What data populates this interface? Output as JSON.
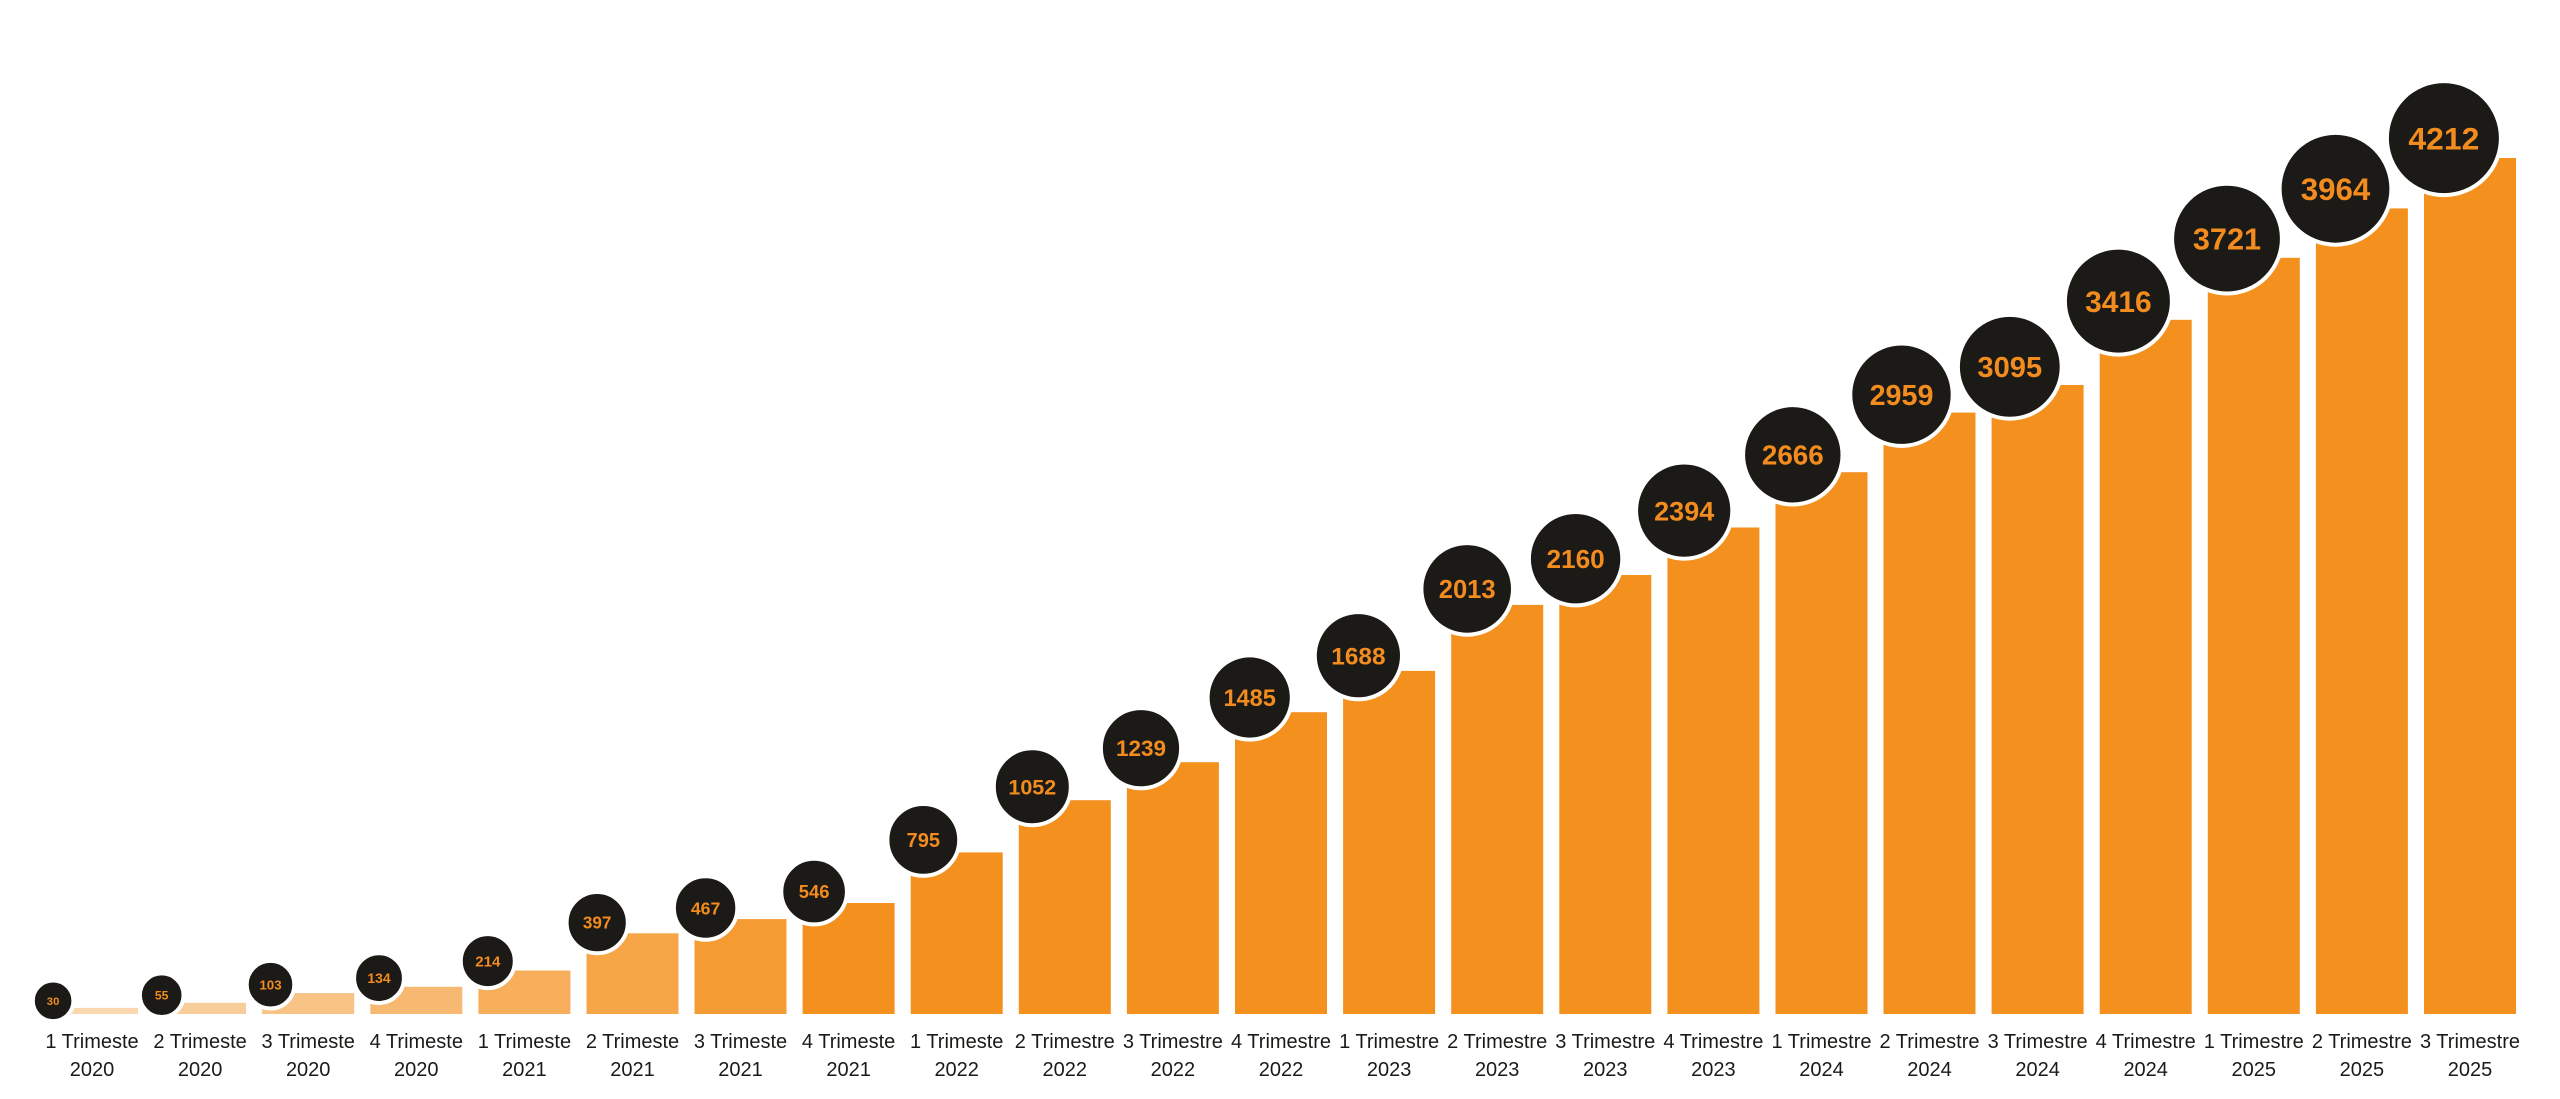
{
  "chart_data": {
    "type": "bar",
    "title": "",
    "xlabel": "",
    "ylabel": "",
    "ylim": [
      0,
      4300
    ],
    "grid": false,
    "legend": "none",
    "data_labels": "circle-badge-on-top",
    "colors": {
      "bar": "#f4911e",
      "bar_light": "#fbe3c8",
      "badge": "#1c1a17",
      "badge_text": "#f28c1e",
      "tick_text": "#1c1a17"
    },
    "categories": [
      {
        "line1": "1 Trimeste",
        "line2": "2020"
      },
      {
        "line1": "2 Trimeste",
        "line2": "2020"
      },
      {
        "line1": "3 Trimeste",
        "line2": "2020"
      },
      {
        "line1": "4 Trimeste",
        "line2": "2020"
      },
      {
        "line1": "1 Trimeste",
        "line2": "2021"
      },
      {
        "line1": "2 Trimeste",
        "line2": "2021"
      },
      {
        "line1": "3 Trimeste",
        "line2": "2021"
      },
      {
        "line1": "4 Trimeste",
        "line2": "2021"
      },
      {
        "line1": "1 Trimeste",
        "line2": "2022"
      },
      {
        "line1": "2 Trimestre",
        "line2": "2022"
      },
      {
        "line1": "3 Trimestre",
        "line2": "2022"
      },
      {
        "line1": "4 Trimestre",
        "line2": "2022"
      },
      {
        "line1": "1 Trimestre",
        "line2": "2023"
      },
      {
        "line1": "2 Trimestre",
        "line2": "2023"
      },
      {
        "line1": "3 Trimestre",
        "line2": "2023"
      },
      {
        "line1": "4 Trimestre",
        "line2": "2023"
      },
      {
        "line1": "1 Trimestre",
        "line2": "2024"
      },
      {
        "line1": "2 Trimestre",
        "line2": "2024"
      },
      {
        "line1": "3 Trimestre",
        "line2": "2024"
      },
      {
        "line1": "4 Trimestre",
        "line2": "2024"
      },
      {
        "line1": "1 Trimestre",
        "line2": "2025"
      },
      {
        "line1": "2 Trimestre",
        "line2": "2025"
      },
      {
        "line1": "3 Trimestre",
        "line2": "2025"
      }
    ],
    "values": [
      30,
      55,
      103,
      134,
      214,
      397,
      467,
      546,
      795,
      1052,
      1239,
      1485,
      1688,
      2013,
      2160,
      2394,
      2666,
      2959,
      3095,
      3416,
      3721,
      3964,
      4212
    ],
    "labels": [
      "30",
      "55",
      "103",
      "134",
      "214",
      "397",
      "467",
      "546",
      "795",
      "1052",
      "1239",
      "1485",
      "1688",
      "2013",
      "2160",
      "2394",
      "2666",
      "2959",
      "3095",
      "3416",
      "3721",
      "3964",
      "4212"
    ]
  }
}
